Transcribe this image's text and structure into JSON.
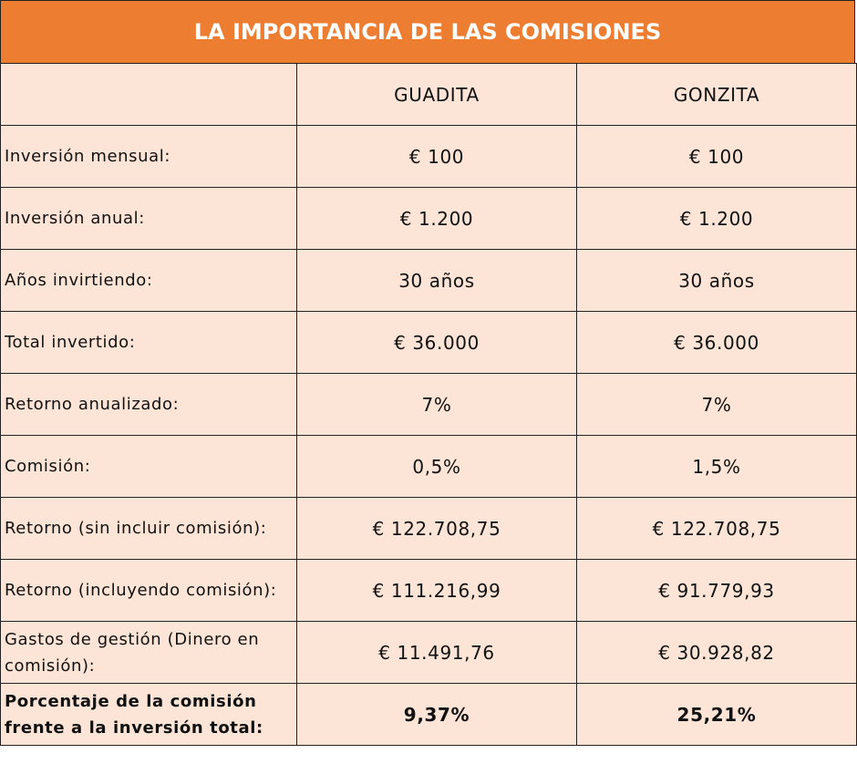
{
  "title": "LA IMPORTANCIA DE LAS COMISIONES",
  "columns": [
    "",
    "GUADITA",
    "GONZITA"
  ],
  "rows": [
    {
      "label": "Inversión mensual:",
      "guadita": "€ 100",
      "gonzita": "€ 100"
    },
    {
      "label": "Inversión anual:",
      "guadita": "€ 1.200",
      "gonzita": "€ 1.200"
    },
    {
      "label": "Años invirtiendo:",
      "guadita": "30 años",
      "gonzita": "30 años"
    },
    {
      "label": "Total invertido:",
      "guadita": "€ 36.000",
      "gonzita": "€ 36.000"
    },
    {
      "label": "Retorno anualizado:",
      "guadita": "7%",
      "gonzita": "7%"
    },
    {
      "label": "Comisión:",
      "guadita": "0,5%",
      "gonzita": "1,5%"
    },
    {
      "label": "Retorno (sin incluir comisión):",
      "guadita": "€ 122.708,75",
      "gonzita": "€ 122.708,75"
    },
    {
      "label": "Retorno (incluyendo comisión):",
      "guadita": "€ 111.216,99",
      "gonzita": "€ 91.779,93"
    },
    {
      "label": "Gastos de gestión (Dinero en comisión):",
      "guadita": "€ 11.491,76",
      "gonzita": "€ 30.928,82"
    },
    {
      "label": "Porcentaje de la comisión frente a la inversión total:",
      "guadita": "9,37%",
      "gonzita": "25,21%"
    }
  ],
  "colors": {
    "header": "#ED7D31",
    "cell": "#FCE4D6"
  }
}
